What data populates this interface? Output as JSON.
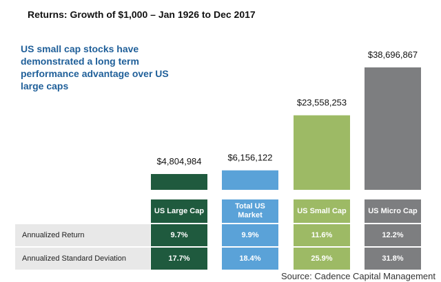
{
  "title": "Returns: Growth of $1,000 – Jan 1926 to Dec 2017",
  "callout": "US small cap stocks have demonstrated a long term performance advantage over US large caps",
  "source": "Source: Cadence Capital Management",
  "colors": {
    "large_cap": "#1f5a3e",
    "total_market": "#5aa2d8",
    "small_cap": "#9dba65",
    "micro_cap": "#7d7e80",
    "callout": "#1f5f99",
    "row_label_bg": "#e8e8e8"
  },
  "chart_data": {
    "type": "bar",
    "title": "Returns: Growth of $1,000 – Jan 1926 to Dec 2017",
    "categories": [
      "US Large Cap",
      "Total US Market",
      "US Small Cap",
      "US Micro Cap"
    ],
    "values": [
      4804984,
      6156122,
      23558253,
      38696867
    ],
    "value_labels": [
      "$4,804,984",
      "$6,156,122",
      "$23,558,253",
      "$38,696,867"
    ],
    "ylim": [
      0,
      40000000
    ],
    "xlabel": "",
    "ylabel": ""
  },
  "category_labels": [
    "US Large Cap",
    "Total US Market",
    "US Small Cap",
    "US Micro Cap"
  ],
  "table": {
    "rows": [
      {
        "label": "Annualized Return",
        "values": [
          "9.7%",
          "9.9%",
          "11.6%",
          "12.2%"
        ]
      },
      {
        "label": "Annualized Standard Deviation",
        "values": [
          "17.7%",
          "18.4%",
          "25.9%",
          "31.8%"
        ]
      }
    ]
  }
}
